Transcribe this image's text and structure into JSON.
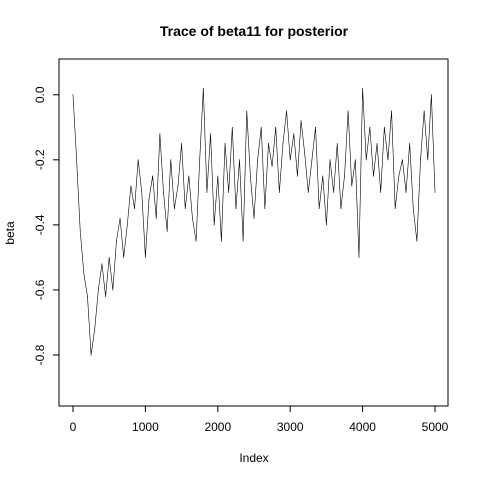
{
  "chart_data": {
    "type": "line",
    "title": "Trace of beta11 for posterior",
    "xlabel": "Index",
    "ylabel": "beta",
    "xlim": [
      0,
      5000
    ],
    "ylim": [
      -0.92,
      0.07
    ],
    "x_ticks": [
      0,
      1000,
      2000,
      3000,
      4000,
      5000
    ],
    "x_tick_labels": [
      "0",
      "1000",
      "2000",
      "3000",
      "4000",
      "5000"
    ],
    "y_ticks": [
      -0.8,
      -0.6,
      -0.4,
      -0.2,
      0.0
    ],
    "y_tick_labels": [
      "-0.8",
      "-0.6",
      "-0.4",
      "-0.2",
      "0.0"
    ],
    "grid": false,
    "legend": "none",
    "series": [
      {
        "x": [
          0,
          50,
          100,
          150,
          200,
          250,
          300,
          350,
          400,
          450,
          500,
          550,
          600,
          650,
          700,
          750,
          800,
          850,
          900,
          950,
          1000,
          1050,
          1100,
          1150,
          1200,
          1250,
          1300,
          1350,
          1400,
          1450,
          1500,
          1550,
          1600,
          1650,
          1700,
          1750,
          1800,
          1850,
          1900,
          1950,
          2000,
          2050,
          2100,
          2150,
          2200,
          2250,
          2300,
          2350,
          2400,
          2450,
          2500,
          2550,
          2600,
          2650,
          2700,
          2750,
          2800,
          2850,
          2900,
          2950,
          3000,
          3050,
          3100,
          3150,
          3200,
          3250,
          3300,
          3350,
          3400,
          3450,
          3500,
          3550,
          3600,
          3650,
          3700,
          3750,
          3800,
          3850,
          3900,
          3950,
          4000,
          4050,
          4100,
          4150,
          4200,
          4250,
          4300,
          4350,
          4400,
          4450,
          4500,
          4550,
          4600,
          4650,
          4700,
          4750,
          4800,
          4850,
          4900,
          4950,
          5000
        ],
        "y": [
          0.0,
          -0.2,
          -0.42,
          -0.55,
          -0.62,
          -0.8,
          -0.72,
          -0.6,
          -0.52,
          -0.62,
          -0.5,
          -0.6,
          -0.45,
          -0.38,
          -0.5,
          -0.4,
          -0.28,
          -0.35,
          -0.2,
          -0.3,
          -0.5,
          -0.32,
          -0.25,
          -0.38,
          -0.12,
          -0.3,
          -0.42,
          -0.2,
          -0.35,
          -0.28,
          -0.15,
          -0.35,
          -0.25,
          -0.38,
          -0.45,
          -0.2,
          0.02,
          -0.3,
          -0.12,
          -0.4,
          -0.25,
          -0.45,
          -0.15,
          -0.3,
          -0.1,
          -0.35,
          -0.2,
          -0.45,
          -0.05,
          -0.25,
          -0.38,
          -0.2,
          -0.1,
          -0.35,
          -0.15,
          -0.22,
          -0.1,
          -0.3,
          -0.15,
          -0.05,
          -0.2,
          -0.12,
          -0.25,
          -0.08,
          -0.18,
          -0.3,
          -0.2,
          -0.1,
          -0.35,
          -0.25,
          -0.4,
          -0.2,
          -0.3,
          -0.15,
          -0.35,
          -0.25,
          -0.05,
          -0.28,
          -0.2,
          -0.5,
          0.02,
          -0.2,
          -0.1,
          -0.25,
          -0.15,
          -0.3,
          -0.1,
          -0.2,
          -0.05,
          -0.35,
          -0.25,
          -0.2,
          -0.3,
          -0.15,
          -0.35,
          -0.45,
          -0.2,
          -0.05,
          -0.2,
          0.0,
          -0.3
        ]
      }
    ]
  }
}
